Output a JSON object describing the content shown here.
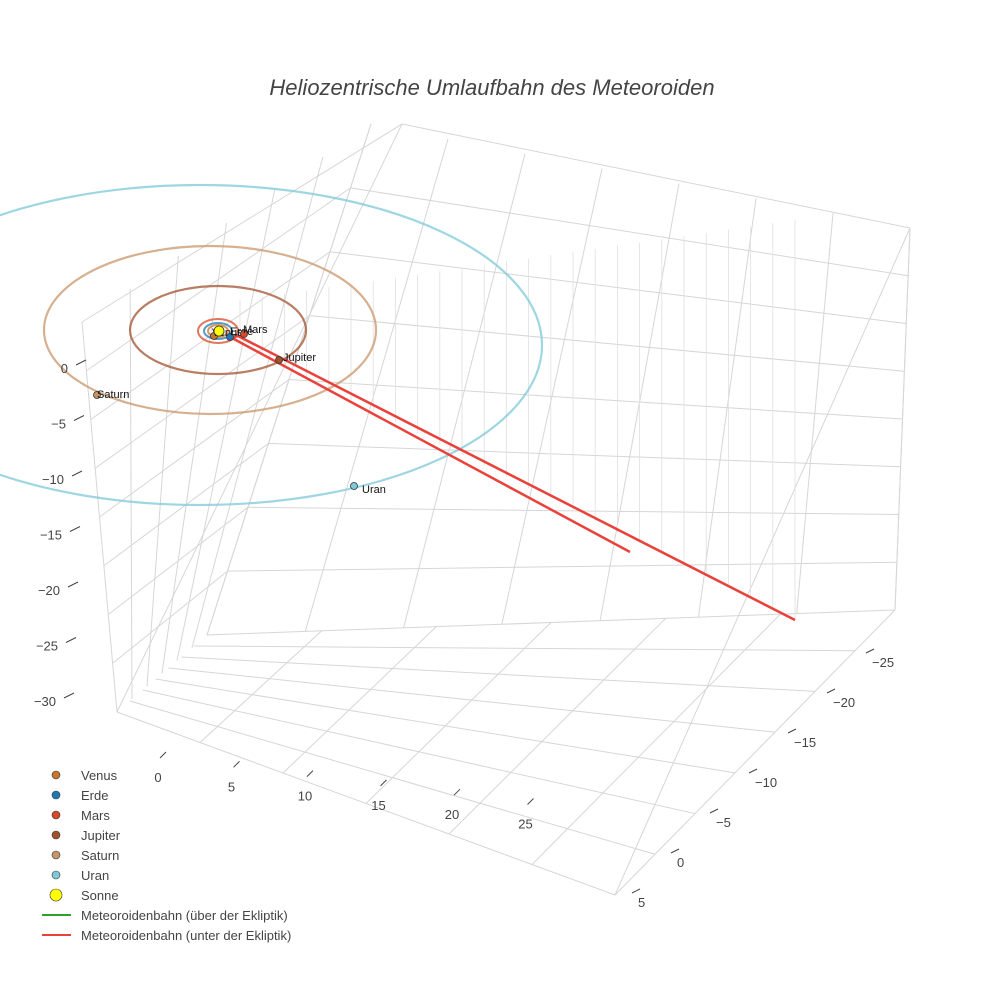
{
  "chart_data": {
    "type": "scatter3d",
    "title": "Heliozentrische Umlaufbahn des Meteoroiden",
    "axes": {
      "x": {
        "ticks": [
          "0",
          "5",
          "10",
          "15",
          "20",
          "25"
        ]
      },
      "y": {
        "ticks": [
          "−25",
          "−20",
          "−15",
          "−10",
          "−5",
          "0",
          "5"
        ]
      },
      "z": {
        "ticks": [
          "0",
          "−5",
          "−10",
          "−15",
          "−20",
          "−25",
          "−30"
        ]
      }
    },
    "planets": [
      {
        "name": "Venus",
        "label": "Venus",
        "color": "#c8762c"
      },
      {
        "name": "Erde",
        "label": "Erde",
        "color": "#1f77b4"
      },
      {
        "name": "Mars",
        "label": "Mars",
        "color": "#d6492a"
      },
      {
        "name": "Jupiter",
        "label": "Jupiter",
        "color": "#a0522d"
      },
      {
        "name": "Saturn",
        "label": "Saturn",
        "color": "#c8956a"
      },
      {
        "name": "Uran",
        "label": "Uran",
        "color": "#7ec8d8"
      }
    ],
    "sun": {
      "name": "Sonne",
      "color": "#ffff00"
    },
    "meteoroid": {
      "above": {
        "name": "Meteoroidenbahn (über der Ekliptik)",
        "color": "#2ca02c"
      },
      "below": {
        "name": "Meteoroidenbahn (unter der Ekliptik)",
        "color": "#e8423a"
      }
    },
    "grid": true,
    "legend": "bottom-left"
  }
}
